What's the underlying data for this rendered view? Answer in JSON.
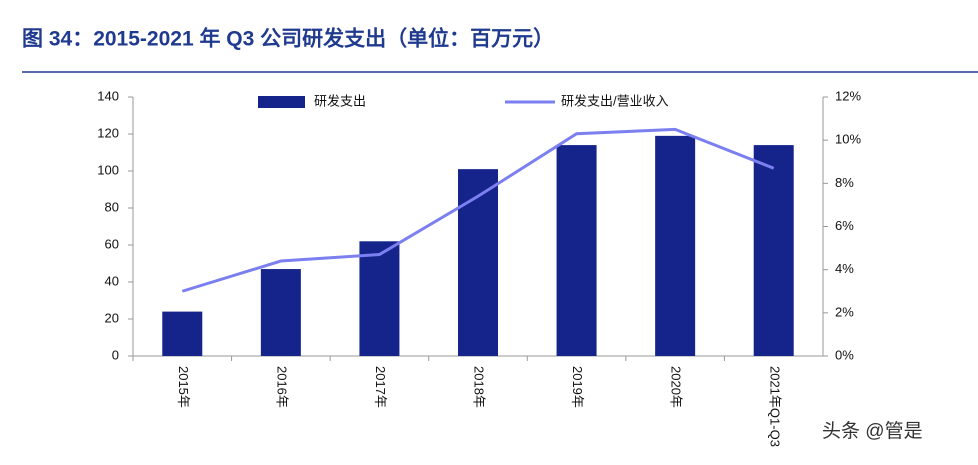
{
  "chart_data": {
    "type": "bar_line",
    "title": "图 34：2015-2021 年 Q3 公司研发支出（单位：百万元）",
    "watermark": "头条 @管是",
    "categories": [
      "2015年",
      "2016年",
      "2017年",
      "2018年",
      "2019年",
      "2020年",
      "2021年Q1-Q3"
    ],
    "series": [
      {
        "name": "研发支出",
        "type": "bar",
        "color": "#14248a",
        "values": [
          24,
          47,
          62,
          101,
          114,
          119,
          114
        ]
      },
      {
        "name": "研发支出/营业收入",
        "type": "line",
        "axis": "y2",
        "color": "#7b7ff0",
        "values": [
          3.0,
          4.4,
          4.7,
          7.4,
          10.3,
          10.5,
          8.7
        ]
      }
    ],
    "ylim": [
      0,
      140
    ],
    "yticks": [
      0,
      20,
      40,
      60,
      80,
      100,
      120,
      140
    ],
    "y2lim": [
      0,
      12
    ],
    "y2ticks": [
      {
        "value": 0,
        "label": "0%"
      },
      {
        "value": 2,
        "label": "2%"
      },
      {
        "value": 4,
        "label": "4%"
      },
      {
        "value": 6,
        "label": "6%"
      },
      {
        "value": 8,
        "label": "8%"
      },
      {
        "value": 10,
        "label": "10%"
      },
      {
        "value": 12,
        "label": "12%"
      }
    ],
    "grid": false
  }
}
